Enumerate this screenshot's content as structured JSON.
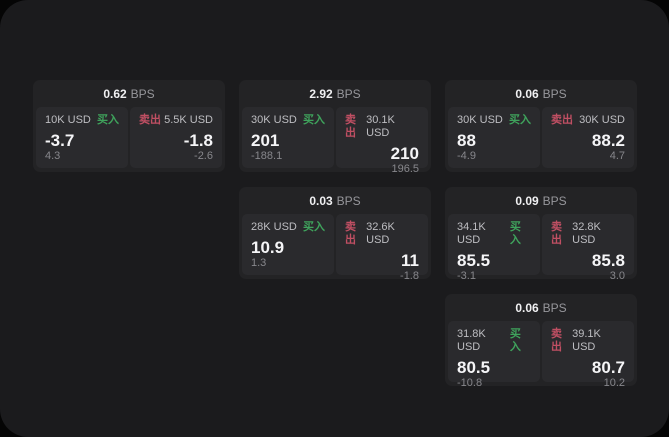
{
  "labels": {
    "bps_unit": "BPS",
    "buy": "买入",
    "sell": "卖出"
  },
  "colors": {
    "buy_green": "#3fa35c",
    "sell_red": "#c04f63",
    "window_bg": "#1b1b1d",
    "card_bg": "#232325",
    "pane_bg": "#2a2a2d"
  },
  "cards": [
    {
      "bps": "0.62",
      "buy": {
        "amount": "10K USD",
        "price": "-3.7",
        "sub": "4.3"
      },
      "sell": {
        "amount": "5.5K USD",
        "price": "-1.8",
        "sub": "-2.6"
      }
    },
    {
      "bps": "2.92",
      "buy": {
        "amount": "30K USD",
        "price": "201",
        "sub": "-188.1"
      },
      "sell": {
        "amount": "30.1K USD",
        "price": "210",
        "sub": "196.5"
      }
    },
    {
      "bps": "0.06",
      "buy": {
        "amount": "30K USD",
        "price": "88",
        "sub": "-4.9"
      },
      "sell": {
        "amount": "30K USD",
        "price": "88.2",
        "sub": "4.7"
      }
    },
    {
      "bps": "0.03",
      "buy": {
        "amount": "28K USD",
        "price": "10.9",
        "sub": "1.3"
      },
      "sell": {
        "amount": "32.6K USD",
        "price": "11",
        "sub": "-1.8"
      }
    },
    {
      "bps": "0.09",
      "buy": {
        "amount": "34.1K USD",
        "price": "85.5",
        "sub": "-3.1"
      },
      "sell": {
        "amount": "32.8K USD",
        "price": "85.8",
        "sub": "3.0"
      }
    },
    {
      "bps": "0.06",
      "buy": {
        "amount": "31.8K USD",
        "price": "80.5",
        "sub": "-10.8"
      },
      "sell": {
        "amount": "39.1K USD",
        "price": "80.7",
        "sub": "10.2"
      }
    }
  ]
}
